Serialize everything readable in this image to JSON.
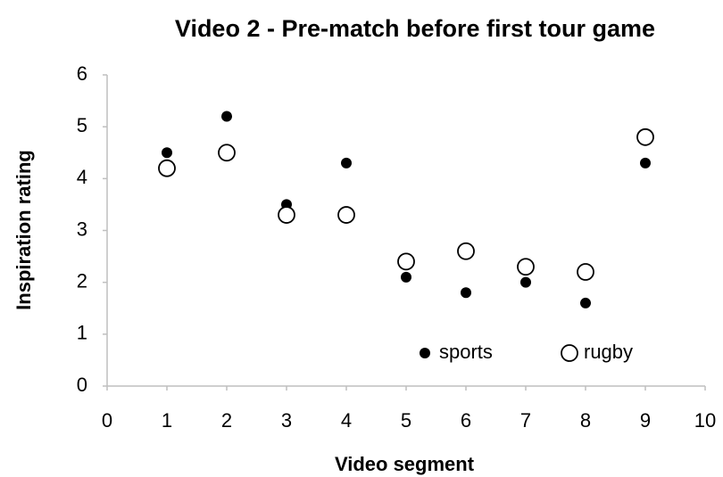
{
  "chart_data": {
    "type": "scatter",
    "title": "Video 2 - Pre-match before first tour game",
    "xlabel": "Video segment",
    "ylabel": "Inspiration rating",
    "series": [
      {
        "name": "sports",
        "color": "#000000",
        "marker": "filled",
        "x": [
          1,
          2,
          3,
          4,
          5,
          6,
          7,
          8,
          9
        ],
        "values": [
          4.5,
          5.2,
          3.5,
          4.3,
          2.1,
          1.8,
          2.0,
          1.6,
          4.3
        ]
      },
      {
        "name": "rugby",
        "color": "#000000",
        "marker": "open",
        "x": [
          1,
          2,
          3,
          4,
          5,
          6,
          7,
          8,
          9
        ],
        "values": [
          4.2,
          4.5,
          3.3,
          3.3,
          2.4,
          2.6,
          2.3,
          2.2,
          4.8
        ]
      }
    ],
    "xlim": [
      0,
      10
    ],
    "xticks": [
      0,
      1,
      2,
      3,
      4,
      5,
      6,
      7,
      8,
      9,
      10
    ],
    "ylim": [
      0,
      6
    ],
    "yticks": [
      0,
      1,
      2,
      3,
      4,
      5,
      6
    ],
    "grid": false,
    "legend": "lower right"
  }
}
